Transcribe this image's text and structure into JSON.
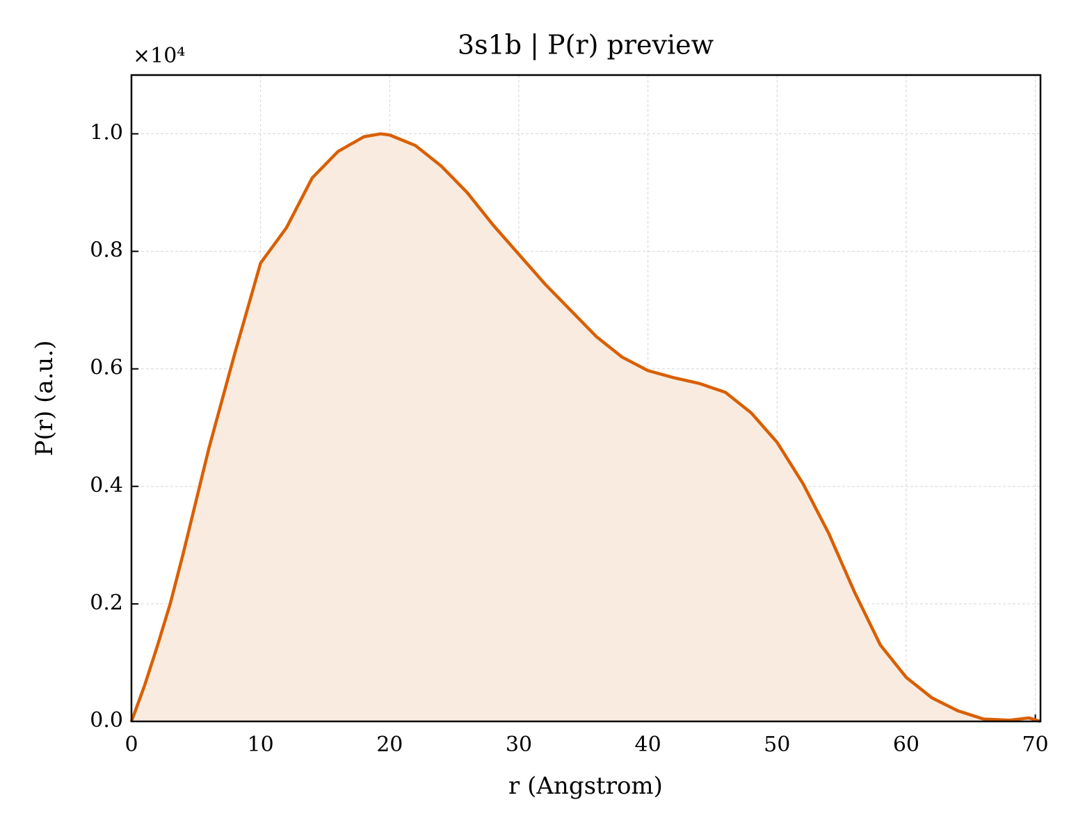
{
  "chart_data": {
    "type": "line",
    "title": "3s1b | P(r) preview",
    "xlabel": "r (Angstrom)",
    "ylabel": "P(r) (a.u.)",
    "y_offset_label": "×10⁴",
    "x": [
      0,
      1,
      2,
      3,
      4,
      5,
      6,
      8,
      10,
      12,
      14,
      16,
      18,
      19.3,
      20,
      22,
      24,
      26,
      28,
      30,
      32,
      34,
      36,
      38,
      40,
      42,
      44,
      46,
      48,
      50,
      52,
      54,
      56,
      58,
      60,
      62,
      64,
      66,
      68,
      69.5,
      70.4
    ],
    "series": [
      {
        "name": "P(r)",
        "color": "#d95f02",
        "fill": "#f9ebe0",
        "values": [
          0,
          600,
          1280,
          2000,
          2850,
          3750,
          4650,
          6260,
          7800,
          8400,
          9250,
          9700,
          9950,
          10000,
          9980,
          9800,
          9450,
          9000,
          8450,
          7950,
          7450,
          7000,
          6550,
          6200,
          5970,
          5850,
          5750,
          5600,
          5250,
          4750,
          4050,
          3200,
          2200,
          1300,
          750,
          400,
          180,
          40,
          20,
          60,
          0
        ]
      }
    ],
    "xlim": [
      0,
      70.4
    ],
    "ylim": [
      0,
      11000
    ],
    "xticks": [
      0,
      10,
      20,
      30,
      40,
      50,
      60,
      70
    ],
    "yticks": [
      {
        "value": 0,
        "label": "0.0"
      },
      {
        "value": 2000,
        "label": "0.2"
      },
      {
        "value": 4000,
        "label": "0.4"
      },
      {
        "value": 6000,
        "label": "0.6"
      },
      {
        "value": 8000,
        "label": "0.8"
      },
      {
        "value": 10000,
        "label": "1.0"
      }
    ],
    "grid": true
  }
}
